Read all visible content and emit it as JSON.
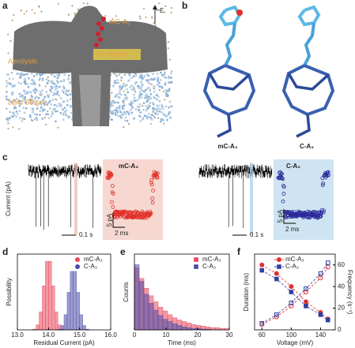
{
  "panel_labels": [
    "a",
    "b",
    "c",
    "d",
    "e",
    "f"
  ],
  "panel_a": {
    "molecule": "mC-A₃",
    "field": "E",
    "pore": "Aerolysin",
    "region": "R1 region",
    "membrane": "Lipid Bilayer"
  },
  "panel_b": {
    "labels": [
      "mC-A₃",
      "C-A₃"
    ]
  },
  "panel_c": {
    "ylabel": "Current (pA)",
    "traces": [
      {
        "name": "mC-A₃",
        "color": "#e0302a",
        "time_scale": "0.1 s",
        "inset_current_scale": "5 pA",
        "inset_time_scale": "2 ms"
      },
      {
        "name": "C-A₃",
        "color": "#2a2a9a",
        "time_scale": "0.1 s",
        "inset_current_scale": "5 pA",
        "inset_time_scale": "2 ms"
      }
    ]
  },
  "chart_data": [
    {
      "type": "histogram",
      "xlabel": "Residual Current (pA)",
      "ylabel": "Possibility",
      "bins": [
        13,
        13.1,
        13.2,
        13.3,
        13.4,
        13.5,
        13.6,
        13.7,
        13.8,
        13.9,
        14,
        14.1,
        14.2,
        14.3,
        14.4,
        14.5,
        14.6,
        14.7,
        14.8,
        14.9,
        15,
        15.1,
        15.2,
        15.3,
        15.4,
        15.5,
        15.6,
        15.7,
        15.8,
        15.9,
        16
      ],
      "xlim": [
        13,
        16
      ],
      "xticks": [
        {
          "value": 13,
          "label": "13.0"
        },
        {
          "value": 14,
          "label": "14.0"
        },
        {
          "value": 15,
          "label": "15.0"
        },
        {
          "value": 16,
          "label": "16.0"
        }
      ],
      "ylim": [
        0,
        105
      ],
      "legend": "upper right",
      "series": [
        {
          "name": "mC-A₃",
          "color": "#e8465a",
          "marker": "circle",
          "values": [
            0,
            0,
            0,
            0,
            0,
            1,
            7,
            25,
            61,
            95,
            95,
            61,
            25,
            7,
            1,
            0,
            0,
            0,
            0,
            0,
            0,
            0,
            0,
            0,
            0,
            0,
            0,
            0,
            0,
            0
          ]
        },
        {
          "name": "C-A₃",
          "color": "#4a4aa8",
          "marker": "circle",
          "values": [
            0,
            0,
            0,
            0,
            0,
            0,
            0,
            0,
            0,
            0,
            0,
            0,
            0,
            1,
            6,
            21,
            52,
            81,
            81,
            52,
            21,
            6,
            1,
            0,
            0,
            0,
            0,
            0,
            0,
            0
          ]
        }
      ]
    },
    {
      "type": "histogram",
      "xlabel": "Time (ms)",
      "ylabel": "Counts",
      "bins": [
        0,
        1.5,
        3,
        4.5,
        6,
        7.5,
        9,
        10.5,
        12,
        13.5,
        15,
        16.5,
        18,
        19.5,
        21,
        22.5,
        24,
        25.5,
        27,
        28.5,
        30
      ],
      "xlim": [
        0,
        30
      ],
      "xticks": [
        0,
        10,
        20,
        30
      ],
      "ylim": [
        0,
        100
      ],
      "legend": "upper right",
      "series": [
        {
          "name": "mC-A₃",
          "color": "#e8465a",
          "marker": "square",
          "values": [
            82,
            68,
            55,
            45,
            37,
            30,
            25,
            20,
            16,
            13,
            11,
            9,
            7,
            6,
            5,
            4,
            3,
            3,
            2,
            2
          ]
        },
        {
          "name": "C-A₃",
          "color": "#4a4aa8",
          "marker": "square",
          "values": [
            86,
            64,
            47,
            35,
            26,
            19,
            14,
            11,
            8,
            6,
            4,
            3,
            2,
            2,
            1,
            1,
            0,
            0,
            0,
            0
          ]
        }
      ]
    },
    {
      "type": "line",
      "xlabel": "Voltage (mV)",
      "ylabel": "Duration (ms)",
      "y2label": "Frequency (s⁻¹)",
      "x": [
        60,
        80,
        100,
        120,
        140,
        150
      ],
      "xlim": [
        50,
        160
      ],
      "xticks": [
        60,
        100,
        140
      ],
      "ylim": [
        0,
        7
      ],
      "y2lim": [
        0,
        70
      ],
      "y2ticks": [
        0,
        20,
        40,
        60
      ],
      "legend": "upper center",
      "series": [
        {
          "name": "mC-A₃",
          "color": "#e03030",
          "marker": "circle",
          "filled": true,
          "values": [
            6.0,
            5.2,
            4.0,
            2.6,
            1.6,
            1.0
          ]
        },
        {
          "name": "C-A₃",
          "color": "#3040a0",
          "marker": "square",
          "filled": true,
          "values": [
            5.5,
            4.7,
            3.5,
            2.2,
            1.4,
            0.9
          ]
        },
        {
          "name": "mC-A₃",
          "color": "#e03030",
          "marker": "circle",
          "filled": false,
          "axis": "y2",
          "values": [
            5,
            12,
            22,
            35,
            48,
            58
          ]
        },
        {
          "name": "C-A₃",
          "color": "#3040a0",
          "marker": "square",
          "filled": false,
          "axis": "y2",
          "values": [
            6,
            14,
            25,
            38,
            52,
            62
          ]
        }
      ]
    }
  ]
}
